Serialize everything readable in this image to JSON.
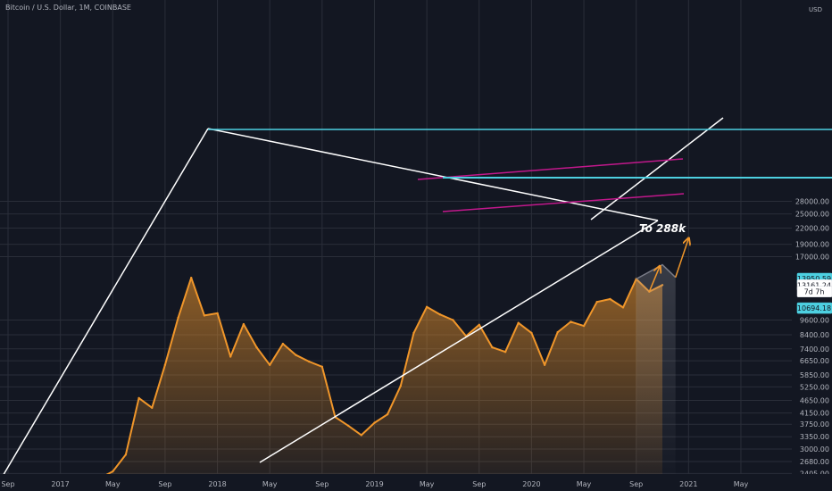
{
  "header": {
    "title": "Bitcoin / U.S. Dollar, 1M, COINBASE",
    "currency": "USD"
  },
  "chart_data": {
    "type": "area",
    "grid": true,
    "y_scale": "log",
    "ylim": [
      2000,
      29000
    ],
    "xlim": [
      "2016-08",
      "2021-06"
    ],
    "x_ticks": [
      {
        "date": "2016-09",
        "label": "Sep"
      },
      {
        "date": "2017-01",
        "label": "2017"
      },
      {
        "date": "2017-05",
        "label": "May"
      },
      {
        "date": "2017-09",
        "label": "Sep"
      },
      {
        "date": "2018-01",
        "label": "2018"
      },
      {
        "date": "2018-05",
        "label": "May"
      },
      {
        "date": "2018-09",
        "label": "Sep"
      },
      {
        "date": "2019-01",
        "label": "2019"
      },
      {
        "date": "2019-05",
        "label": "May"
      },
      {
        "date": "2019-09",
        "label": "Sep"
      },
      {
        "date": "2020-01",
        "label": "2020"
      },
      {
        "date": "2020-05",
        "label": "May"
      },
      {
        "date": "2020-09",
        "label": "Sep"
      },
      {
        "date": "2021-01",
        "label": "2021"
      },
      {
        "date": "2021-05",
        "label": "May"
      }
    ],
    "y_ticks": [
      {
        "value": 2165,
        "label": "2165.00"
      },
      {
        "value": 2405,
        "label": "2405.00"
      },
      {
        "value": 2680,
        "label": "2680.00"
      },
      {
        "value": 3000,
        "label": "3000.00"
      },
      {
        "value": 3350,
        "label": "3350.00"
      },
      {
        "value": 3750,
        "label": "3750.00"
      },
      {
        "value": 4150,
        "label": "4150.00"
      },
      {
        "value": 4650,
        "label": "4650.00"
      },
      {
        "value": 5250,
        "label": "5250.00"
      },
      {
        "value": 5850,
        "label": "5850.00"
      },
      {
        "value": 6650,
        "label": "6650.00"
      },
      {
        "value": 7400,
        "label": "7400.00"
      },
      {
        "value": 8400,
        "label": "8400.00"
      },
      {
        "value": 9600,
        "label": "9600.00"
      },
      {
        "value": 17000,
        "label": "17000.00"
      },
      {
        "value": 19000,
        "label": "19000.00"
      },
      {
        "value": 22000,
        "label": "22000.00"
      },
      {
        "value": 25000,
        "label": "25000.00"
      },
      {
        "value": 28000,
        "label": "28000.00"
      }
    ],
    "price_tags": [
      {
        "value": 13950.59,
        "label": "13950.59",
        "style": "cyan"
      },
      {
        "value": 13161.24,
        "label": "13161.24",
        "style": "white"
      },
      {
        "value": 12400,
        "label": "7d 7h",
        "style": "white"
      },
      {
        "value": 10694.18,
        "label": "10694.18",
        "style": "cyan"
      }
    ],
    "series": [
      {
        "x": [
          "2017-03",
          "2017-04",
          "2017-05",
          "2017-06",
          "2017-07",
          "2017-08",
          "2017-09",
          "2017-10",
          "2017-11",
          "2017-12",
          "2018-01",
          "2018-02",
          "2018-03",
          "2018-04",
          "2018-05",
          "2018-06",
          "2018-07",
          "2018-08",
          "2018-09",
          "2018-10",
          "2018-11",
          "2018-12",
          "2019-01",
          "2019-02",
          "2019-03",
          "2019-04",
          "2019-05",
          "2019-06",
          "2019-07",
          "2019-08",
          "2019-09",
          "2019-10",
          "2019-11",
          "2019-12",
          "2020-01",
          "2020-02",
          "2020-03",
          "2020-04",
          "2020-05",
          "2020-06",
          "2020-07",
          "2020-08",
          "2020-09",
          "2020-10",
          "2020-11"
        ],
        "values": [
          2050,
          2300,
          2450,
          2850,
          4750,
          4350,
          6400,
          9800,
          14050,
          10000,
          10200,
          6900,
          9250,
          7500,
          6400,
          7750,
          7000,
          6600,
          6300,
          4000,
          3700,
          3400,
          3800,
          4100,
          5300,
          8550,
          10800,
          10100,
          9600,
          8300,
          9200,
          7500,
          7200,
          9350,
          8550,
          6400,
          8600,
          9450,
          9100,
          11300,
          11600,
          10750,
          13900,
          12400,
          13161.24
        ]
      }
    ],
    "projection": [
      {
        "x": "2020-09",
        "y": 13900
      },
      {
        "x": "2020-10",
        "y": 12400
      },
      {
        "x": "2020-11",
        "y": 15800
      },
      {
        "x": "2020-12",
        "y": 14100
      },
      {
        "x": "2021-01",
        "y": 20000
      }
    ],
    "annotations": [
      {
        "text": "To 288k",
        "x": "2020-11",
        "y": 21200
      }
    ]
  }
}
